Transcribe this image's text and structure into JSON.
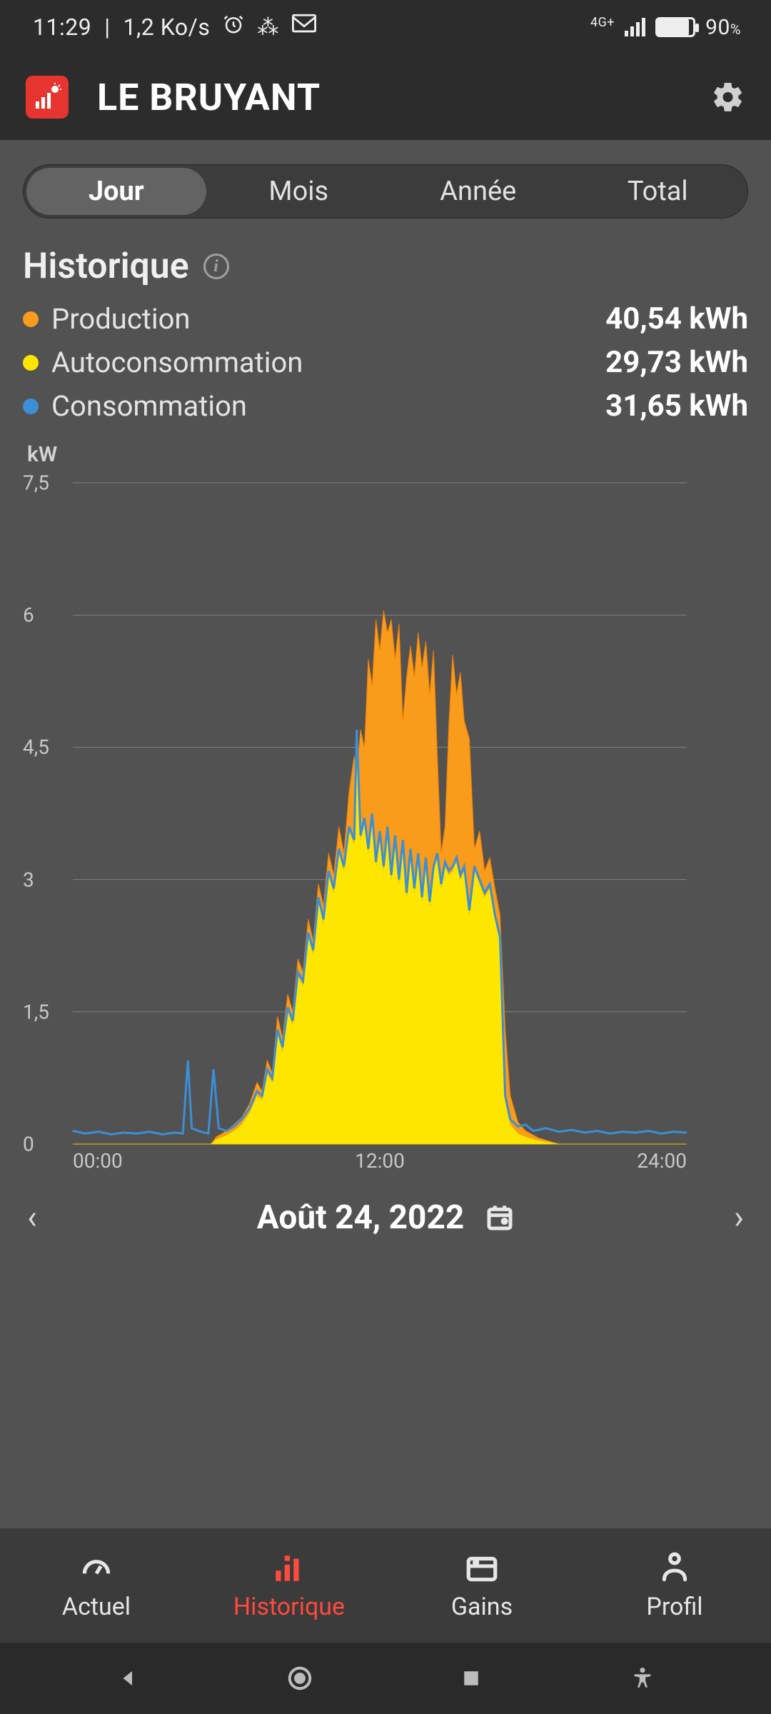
{
  "statusbar": {
    "time": "11:29",
    "netspeed": "1,2 Ko/s",
    "network_label": "4G+",
    "battery_pct": "90",
    "battery_fill": 0.88
  },
  "header": {
    "title": "LE BRUYANT"
  },
  "period_tabs": [
    {
      "label": "Jour",
      "active": true
    },
    {
      "label": "Mois",
      "active": false
    },
    {
      "label": "Année",
      "active": false
    },
    {
      "label": "Total",
      "active": false
    }
  ],
  "section_title": "Historique",
  "legend": [
    {
      "label": "Production",
      "value": "40,54 kWh",
      "color": "#f99b1b"
    },
    {
      "label": "Autoconsommation",
      "value": "29,73 kWh",
      "color": "#ffe600"
    },
    {
      "label": "Consommation",
      "value": "31,65 kWh",
      "color": "#3b8fd6"
    }
  ],
  "chart": {
    "type": "area-line",
    "unit": "kW",
    "ymin": 0,
    "ymax": 7.5,
    "yticks": [
      0,
      1.5,
      3,
      4.5,
      6,
      7.5
    ],
    "ylabels": [
      "0",
      "1,5",
      "3",
      "4,5",
      "6",
      "7,5"
    ],
    "xmin": 0,
    "xmax": 24,
    "xticks": [
      0,
      12,
      24
    ],
    "xlabels": [
      "00:00",
      "12:00",
      "24:00"
    ],
    "background": "#525252",
    "grid_color": "#808080",
    "label_color": "#c8c8c8",
    "label_fontsize": 28,
    "series": {
      "production": {
        "color_fill": "#f99b1b",
        "color_line": "#f07f00",
        "type": "area",
        "points": [
          [
            0,
            0
          ],
          [
            5.4,
            0
          ],
          [
            5.6,
            0.08
          ],
          [
            6.0,
            0.15
          ],
          [
            6.3,
            0.22
          ],
          [
            6.6,
            0.3
          ],
          [
            6.9,
            0.45
          ],
          [
            7.2,
            0.7
          ],
          [
            7.4,
            0.6
          ],
          [
            7.6,
            0.95
          ],
          [
            7.8,
            0.8
          ],
          [
            8.0,
            1.45
          ],
          [
            8.2,
            1.2
          ],
          [
            8.4,
            1.7
          ],
          [
            8.6,
            1.5
          ],
          [
            8.8,
            2.1
          ],
          [
            9.0,
            1.95
          ],
          [
            9.2,
            2.55
          ],
          [
            9.4,
            2.3
          ],
          [
            9.6,
            2.95
          ],
          [
            9.8,
            2.7
          ],
          [
            10.0,
            3.3
          ],
          [
            10.2,
            3.05
          ],
          [
            10.4,
            3.6
          ],
          [
            10.6,
            3.3
          ],
          [
            10.8,
            4.0
          ],
          [
            11.0,
            4.4
          ],
          [
            11.1,
            4.2
          ],
          [
            11.25,
            4.7
          ],
          [
            11.4,
            4.5
          ],
          [
            11.55,
            5.5
          ],
          [
            11.7,
            5.2
          ],
          [
            11.85,
            5.95
          ],
          [
            12.0,
            5.6
          ],
          [
            12.15,
            6.05
          ],
          [
            12.3,
            5.8
          ],
          [
            12.45,
            5.95
          ],
          [
            12.6,
            5.5
          ],
          [
            12.75,
            5.9
          ],
          [
            12.9,
            4.8
          ],
          [
            13.05,
            5.3
          ],
          [
            13.2,
            5.65
          ],
          [
            13.35,
            5.3
          ],
          [
            13.5,
            5.8
          ],
          [
            13.65,
            5.4
          ],
          [
            13.8,
            5.7
          ],
          [
            13.95,
            5.1
          ],
          [
            14.1,
            5.6
          ],
          [
            14.25,
            4.4
          ],
          [
            14.4,
            3.3
          ],
          [
            14.55,
            3.6
          ],
          [
            14.7,
            4.75
          ],
          [
            14.85,
            5.55
          ],
          [
            15.0,
            5.1
          ],
          [
            15.15,
            5.35
          ],
          [
            15.3,
            4.8
          ],
          [
            15.5,
            4.6
          ],
          [
            15.7,
            3.35
          ],
          [
            15.9,
            3.55
          ],
          [
            16.1,
            3.1
          ],
          [
            16.3,
            3.25
          ],
          [
            16.5,
            2.9
          ],
          [
            16.7,
            2.6
          ],
          [
            16.9,
            1.3
          ],
          [
            17.1,
            0.55
          ],
          [
            17.4,
            0.25
          ],
          [
            17.7,
            0.15
          ],
          [
            18.2,
            0.07
          ],
          [
            19.0,
            0
          ],
          [
            24,
            0
          ]
        ]
      },
      "autoconsommation": {
        "color_fill": "#ffe600",
        "color_line": "#e6cf00",
        "type": "area",
        "points": [
          [
            0,
            0
          ],
          [
            5.4,
            0
          ],
          [
            5.6,
            0.05
          ],
          [
            6.0,
            0.1
          ],
          [
            6.3,
            0.15
          ],
          [
            6.6,
            0.22
          ],
          [
            6.9,
            0.35
          ],
          [
            7.2,
            0.55
          ],
          [
            7.4,
            0.5
          ],
          [
            7.6,
            0.8
          ],
          [
            7.8,
            0.7
          ],
          [
            8.0,
            1.25
          ],
          [
            8.2,
            1.05
          ],
          [
            8.4,
            1.5
          ],
          [
            8.6,
            1.35
          ],
          [
            8.8,
            1.9
          ],
          [
            9.0,
            1.8
          ],
          [
            9.2,
            2.35
          ],
          [
            9.4,
            2.15
          ],
          [
            9.6,
            2.75
          ],
          [
            9.8,
            2.5
          ],
          [
            10.0,
            3.05
          ],
          [
            10.2,
            2.85
          ],
          [
            10.4,
            3.3
          ],
          [
            10.6,
            3.1
          ],
          [
            10.8,
            3.55
          ],
          [
            11.0,
            3.4
          ],
          [
            11.1,
            4.7
          ],
          [
            11.25,
            3.45
          ],
          [
            11.4,
            3.65
          ],
          [
            11.55,
            3.3
          ],
          [
            11.7,
            3.7
          ],
          [
            11.85,
            3.15
          ],
          [
            12.0,
            3.5
          ],
          [
            12.15,
            3.1
          ],
          [
            12.3,
            3.55
          ],
          [
            12.45,
            3.0
          ],
          [
            12.6,
            3.45
          ],
          [
            12.75,
            2.95
          ],
          [
            12.9,
            3.4
          ],
          [
            13.05,
            2.8
          ],
          [
            13.2,
            3.3
          ],
          [
            13.35,
            2.85
          ],
          [
            13.5,
            3.25
          ],
          [
            13.65,
            2.75
          ],
          [
            13.8,
            3.2
          ],
          [
            13.95,
            2.7
          ],
          [
            14.1,
            3.1
          ],
          [
            14.25,
            3.25
          ],
          [
            14.4,
            2.9
          ],
          [
            14.55,
            3.15
          ],
          [
            14.7,
            3.05
          ],
          [
            14.85,
            3.1
          ],
          [
            15.0,
            3.2
          ],
          [
            15.15,
            3.0
          ],
          [
            15.3,
            3.1
          ],
          [
            15.5,
            2.6
          ],
          [
            15.7,
            3.1
          ],
          [
            15.9,
            2.95
          ],
          [
            16.1,
            2.8
          ],
          [
            16.3,
            2.9
          ],
          [
            16.5,
            2.55
          ],
          [
            16.7,
            2.3
          ],
          [
            16.9,
            0.5
          ],
          [
            17.1,
            0.22
          ],
          [
            17.4,
            0.12
          ],
          [
            17.7,
            0.08
          ],
          [
            18.2,
            0.04
          ],
          [
            19.0,
            0
          ],
          [
            24,
            0
          ]
        ]
      },
      "consommation": {
        "color_line": "#3b8fd6",
        "line_width": 3,
        "type": "line",
        "points": [
          [
            0,
            0.15
          ],
          [
            0.5,
            0.12
          ],
          [
            1.0,
            0.14
          ],
          [
            1.5,
            0.11
          ],
          [
            2.0,
            0.13
          ],
          [
            2.5,
            0.12
          ],
          [
            3.0,
            0.14
          ],
          [
            3.5,
            0.11
          ],
          [
            4.0,
            0.13
          ],
          [
            4.3,
            0.12
          ],
          [
            4.5,
            0.95
          ],
          [
            4.65,
            0.18
          ],
          [
            5.0,
            0.14
          ],
          [
            5.3,
            0.12
          ],
          [
            5.5,
            0.85
          ],
          [
            5.7,
            0.18
          ],
          [
            6.0,
            0.15
          ],
          [
            6.3,
            0.2
          ],
          [
            6.6,
            0.28
          ],
          [
            6.9,
            0.4
          ],
          [
            7.2,
            0.6
          ],
          [
            7.4,
            0.55
          ],
          [
            7.6,
            0.85
          ],
          [
            7.8,
            0.75
          ],
          [
            8.0,
            1.3
          ],
          [
            8.2,
            1.1
          ],
          [
            8.4,
            1.55
          ],
          [
            8.6,
            1.4
          ],
          [
            8.8,
            1.95
          ],
          [
            9.0,
            1.85
          ],
          [
            9.2,
            2.4
          ],
          [
            9.4,
            2.2
          ],
          [
            9.6,
            2.8
          ],
          [
            9.8,
            2.55
          ],
          [
            10.0,
            3.1
          ],
          [
            10.2,
            2.9
          ],
          [
            10.4,
            3.35
          ],
          [
            10.6,
            3.15
          ],
          [
            10.8,
            3.6
          ],
          [
            11.0,
            3.45
          ],
          [
            11.1,
            4.7
          ],
          [
            11.25,
            3.5
          ],
          [
            11.4,
            3.7
          ],
          [
            11.55,
            3.35
          ],
          [
            11.7,
            3.75
          ],
          [
            11.85,
            3.2
          ],
          [
            12.0,
            3.55
          ],
          [
            12.15,
            3.15
          ],
          [
            12.3,
            3.6
          ],
          [
            12.45,
            3.05
          ],
          [
            12.6,
            3.5
          ],
          [
            12.75,
            3.0
          ],
          [
            12.9,
            3.45
          ],
          [
            13.05,
            2.85
          ],
          [
            13.2,
            3.35
          ],
          [
            13.35,
            2.9
          ],
          [
            13.5,
            3.3
          ],
          [
            13.65,
            2.8
          ],
          [
            13.8,
            3.25
          ],
          [
            13.95,
            2.75
          ],
          [
            14.1,
            3.15
          ],
          [
            14.25,
            3.3
          ],
          [
            14.4,
            2.95
          ],
          [
            14.55,
            3.2
          ],
          [
            14.7,
            3.1
          ],
          [
            14.85,
            3.15
          ],
          [
            15.0,
            3.25
          ],
          [
            15.15,
            3.05
          ],
          [
            15.3,
            3.15
          ],
          [
            15.5,
            2.65
          ],
          [
            15.7,
            3.15
          ],
          [
            15.9,
            3.0
          ],
          [
            16.1,
            2.85
          ],
          [
            16.3,
            2.95
          ],
          [
            16.5,
            2.6
          ],
          [
            16.7,
            2.35
          ],
          [
            16.9,
            0.55
          ],
          [
            17.1,
            0.28
          ],
          [
            17.4,
            0.2
          ],
          [
            17.7,
            0.22
          ],
          [
            18.0,
            0.15
          ],
          [
            18.5,
            0.18
          ],
          [
            19.0,
            0.14
          ],
          [
            19.5,
            0.16
          ],
          [
            20.0,
            0.13
          ],
          [
            20.5,
            0.15
          ],
          [
            21.0,
            0.12
          ],
          [
            21.5,
            0.14
          ],
          [
            22.0,
            0.13
          ],
          [
            22.5,
            0.15
          ],
          [
            23.0,
            0.12
          ],
          [
            23.5,
            0.14
          ],
          [
            24,
            0.13
          ]
        ]
      }
    }
  },
  "date_nav": {
    "label": "Août 24, 2022"
  },
  "tabbar": [
    {
      "label": "Actuel",
      "active": false
    },
    {
      "label": "Historique",
      "active": true
    },
    {
      "label": "Gains",
      "active": false
    },
    {
      "label": "Profil",
      "active": false
    }
  ]
}
